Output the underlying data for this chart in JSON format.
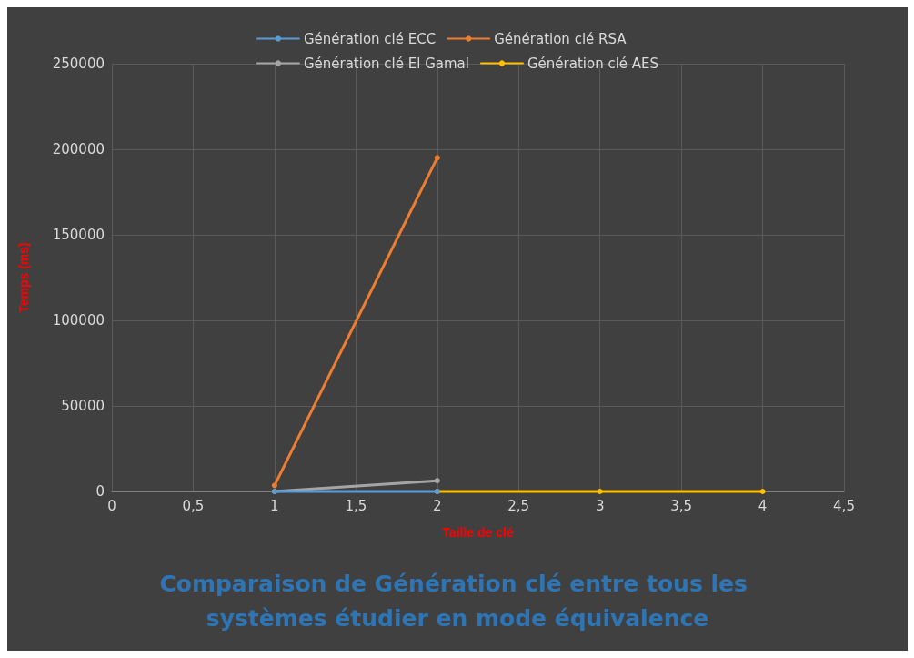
{
  "chart_data": {
    "type": "line",
    "title": "Comparaison de Génération clé entre tous les systèmes étudier en mode équivalence",
    "xlabel": "Taille de clé",
    "ylabel": "Temps (ms)",
    "series": [
      {
        "name": "Génération clé ECC",
        "color": "#5b9bd5",
        "x": [
          1,
          2
        ],
        "values": [
          0,
          0
        ]
      },
      {
        "name": "Génération clé RSA",
        "color": "#ed7d31",
        "x": [
          1,
          2
        ],
        "values": [
          3500,
          195000
        ]
      },
      {
        "name": "Génération clé El Gamal",
        "color": "#a5a5a5",
        "x": [
          1,
          2
        ],
        "values": [
          0,
          6300
        ]
      },
      {
        "name": "Génération clé AES",
        "color": "#ffc000",
        "x": [
          2,
          3,
          4
        ],
        "values": [
          0,
          0,
          0
        ]
      }
    ],
    "xlim": [
      0,
      4.5
    ],
    "xticks": [
      0,
      {
        "value": 0.5,
        "label": "0,5"
      },
      1,
      {
        "value": 1.5,
        "label": "1,5"
      },
      2,
      {
        "value": 2.5,
        "label": "2,5"
      },
      3,
      {
        "value": 3.5,
        "label": "3,5"
      },
      4,
      {
        "value": 4.5,
        "label": "4,5"
      }
    ],
    "ylim": [
      0,
      250000
    ],
    "yticks": [
      0,
      50000,
      100000,
      150000,
      200000,
      250000
    ],
    "grid": true,
    "legend": "top",
    "marker": "circle",
    "line_style": "solid"
  }
}
